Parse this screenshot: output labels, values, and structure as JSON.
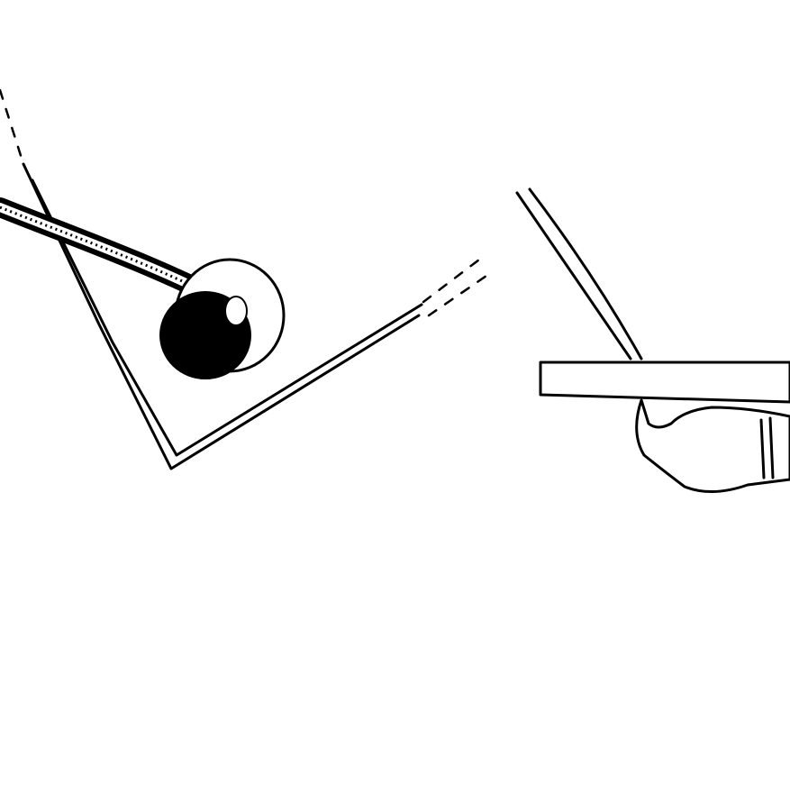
{
  "illustration": {
    "style": "black ink line drawing on white",
    "colors": {
      "background": "#ffffff",
      "ink": "#000000"
    },
    "elements": [
      "folded-paper-sheet",
      "rolled-tape",
      "cable",
      "thin-board",
      "hand"
    ]
  }
}
